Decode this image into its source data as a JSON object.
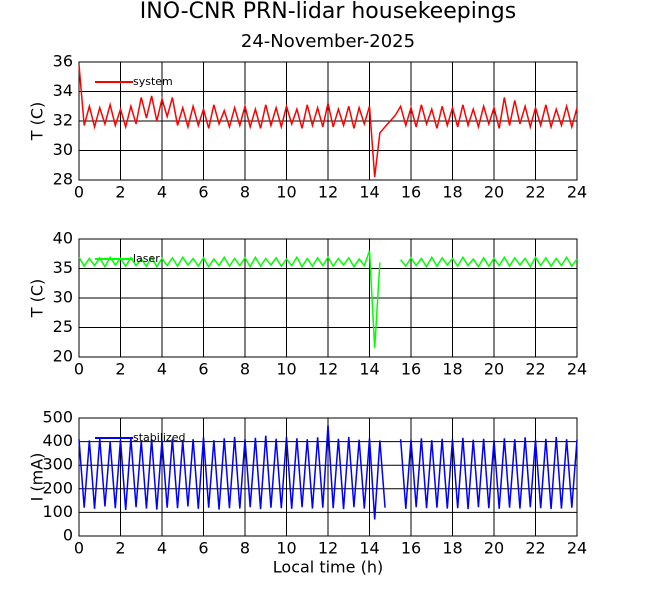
{
  "title": "INO-CNR PRN-lidar housekeepings",
  "subtitle": "24-November-2025",
  "chart_data": [
    {
      "type": "line",
      "ylabel": "T (C)",
      "xlim": [
        0,
        24
      ],
      "ylim": [
        28,
        36
      ],
      "xticks": [
        0,
        2,
        4,
        6,
        8,
        10,
        12,
        14,
        16,
        18,
        20,
        22,
        24
      ],
      "yticks": [
        28,
        30,
        32,
        34,
        36
      ],
      "grid": true,
      "legend": "upper left",
      "x": [
        0,
        0.25,
        0.5,
        0.75,
        1,
        1.25,
        1.5,
        1.75,
        2,
        2.25,
        2.5,
        2.75,
        3,
        3.25,
        3.5,
        3.75,
        4,
        4.25,
        4.5,
        4.75,
        5,
        5.25,
        5.5,
        5.75,
        6,
        6.25,
        6.5,
        6.75,
        7,
        7.25,
        7.5,
        7.75,
        8,
        8.25,
        8.5,
        8.75,
        9,
        9.25,
        9.5,
        9.75,
        10,
        10.25,
        10.5,
        10.75,
        11,
        11.25,
        11.5,
        11.75,
        12,
        12.25,
        12.5,
        12.75,
        13,
        13.25,
        13.5,
        13.75,
        14,
        14.25,
        14.5,
        14.75,
        15,
        15.25,
        15.5,
        15.75,
        16,
        16.25,
        16.5,
        16.75,
        17,
        17.25,
        17.5,
        17.75,
        18,
        18.25,
        18.5,
        18.75,
        19,
        19.25,
        19.5,
        19.75,
        20,
        20.25,
        20.5,
        20.75,
        21,
        21.25,
        21.5,
        21.75,
        22,
        22.25,
        22.5,
        22.75,
        23,
        23.25,
        23.5,
        23.75,
        24
      ],
      "series": [
        {
          "name": "system",
          "color": "#ff0000",
          "values": [
            35.8,
            31.7,
            33.0,
            31.6,
            32.9,
            31.8,
            33.1,
            31.7,
            32.8,
            31.6,
            33.0,
            31.8,
            33.6,
            32.2,
            33.7,
            32.0,
            33.5,
            32.3,
            33.6,
            31.7,
            32.9,
            31.6,
            33.0,
            31.7,
            32.8,
            31.5,
            33.1,
            31.8,
            32.7,
            31.6,
            32.9,
            31.7,
            33.0,
            31.6,
            32.8,
            31.5,
            33.1,
            31.7,
            32.9,
            31.6,
            33.0,
            31.8,
            32.8,
            31.5,
            33.1,
            31.7,
            32.9,
            31.6,
            33.2,
            31.6,
            32.8,
            31.7,
            33.0,
            31.5,
            32.9,
            31.8,
            33.0,
            28.2,
            31.2,
            31.6,
            32.0,
            32.4,
            33.0,
            31.7,
            32.9,
            31.6,
            33.1,
            31.8,
            32.8,
            31.5,
            33.0,
            31.7,
            32.9,
            31.6,
            33.1,
            31.7,
            32.8,
            31.6,
            33.0,
            31.8,
            32.9,
            31.5,
            33.6,
            31.7,
            33.4,
            31.8,
            33.0,
            31.6,
            32.9,
            31.7,
            33.1,
            31.6,
            32.8,
            31.7,
            33.0,
            31.6,
            32.9
          ]
        }
      ]
    },
    {
      "type": "line",
      "ylabel": "T (C)",
      "xlim": [
        0,
        24
      ],
      "ylim": [
        20,
        40
      ],
      "xticks": [
        0,
        2,
        4,
        6,
        8,
        10,
        12,
        14,
        16,
        18,
        20,
        22,
        24
      ],
      "yticks": [
        20,
        25,
        30,
        35,
        40
      ],
      "grid": true,
      "legend": "upper left",
      "x": [
        0,
        0.25,
        0.5,
        0.75,
        1,
        1.25,
        1.5,
        1.75,
        2,
        2.25,
        2.5,
        2.75,
        3,
        3.25,
        3.5,
        3.75,
        4,
        4.25,
        4.5,
        4.75,
        5,
        5.25,
        5.5,
        5.75,
        6,
        6.25,
        6.5,
        6.75,
        7,
        7.25,
        7.5,
        7.75,
        8,
        8.25,
        8.5,
        8.75,
        9,
        9.25,
        9.5,
        9.75,
        10,
        10.25,
        10.5,
        10.75,
        11,
        11.25,
        11.5,
        11.75,
        12,
        12.25,
        12.5,
        12.75,
        13,
        13.25,
        13.5,
        13.75,
        14,
        14.25,
        14.5,
        14.75,
        15,
        15.25,
        15.5,
        15.75,
        16,
        16.25,
        16.5,
        16.75,
        17,
        17.25,
        17.5,
        17.75,
        18,
        18.25,
        18.5,
        18.75,
        19,
        19.25,
        19.5,
        19.75,
        20,
        20.25,
        20.5,
        20.75,
        21,
        21.25,
        21.5,
        21.75,
        22,
        22.25,
        22.5,
        22.75,
        23,
        23.25,
        23.5,
        23.75,
        24
      ],
      "series": [
        {
          "name": "laser",
          "color": "#00ff00",
          "values": [
            36.9,
            35.4,
            36.7,
            35.5,
            36.8,
            35.3,
            36.9,
            35.6,
            36.7,
            35.4,
            36.8,
            35.5,
            36.6,
            35.4,
            36.9,
            35.3,
            36.7,
            35.5,
            36.8,
            35.4,
            36.9,
            35.6,
            36.7,
            35.4,
            36.8,
            35.3,
            36.6,
            35.5,
            36.9,
            35.4,
            36.7,
            35.5,
            36.8,
            35.3,
            36.9,
            35.4,
            36.7,
            35.6,
            36.8,
            35.4,
            36.6,
            35.5,
            36.9,
            35.3,
            36.7,
            35.4,
            36.8,
            35.5,
            36.9,
            35.4,
            36.7,
            35.6,
            36.8,
            35.3,
            36.6,
            35.5,
            38.0,
            21.5,
            36.0,
            null,
            null,
            null,
            36.5,
            35.4,
            36.8,
            35.5,
            36.7,
            35.3,
            36.9,
            35.4,
            36.8,
            35.6,
            36.7,
            35.4,
            36.9,
            35.5,
            36.6,
            35.3,
            36.8,
            35.4,
            36.7,
            35.5,
            36.9,
            35.4,
            36.8,
            35.6,
            36.7,
            35.3,
            36.9,
            35.5,
            36.8,
            35.4,
            36.7,
            35.5,
            36.9,
            35.4,
            36.6
          ]
        }
      ]
    },
    {
      "type": "line",
      "ylabel": "I (mA)",
      "xlabel": "Local time (h)",
      "xlim": [
        0,
        24
      ],
      "ylim": [
        0,
        500
      ],
      "xticks": [
        0,
        2,
        4,
        6,
        8,
        10,
        12,
        14,
        16,
        18,
        20,
        22,
        24
      ],
      "yticks": [
        0,
        100,
        200,
        300,
        400,
        500
      ],
      "grid": true,
      "legend": "upper left",
      "x": [
        0,
        0.25,
        0.5,
        0.75,
        1,
        1.25,
        1.5,
        1.75,
        2,
        2.25,
        2.5,
        2.75,
        3,
        3.25,
        3.5,
        3.75,
        4,
        4.25,
        4.5,
        4.75,
        5,
        5.25,
        5.5,
        5.75,
        6,
        6.25,
        6.5,
        6.75,
        7,
        7.25,
        7.5,
        7.75,
        8,
        8.25,
        8.5,
        8.75,
        9,
        9.25,
        9.5,
        9.75,
        10,
        10.25,
        10.5,
        10.75,
        11,
        11.25,
        11.5,
        11.75,
        12,
        12.25,
        12.5,
        12.75,
        13,
        13.25,
        13.5,
        13.75,
        14,
        14.25,
        14.5,
        14.75,
        15,
        15.25,
        15.5,
        15.75,
        16,
        16.25,
        16.5,
        16.75,
        17,
        17.25,
        17.5,
        17.75,
        18,
        18.25,
        18.5,
        18.75,
        19,
        19.25,
        19.5,
        19.75,
        20,
        20.25,
        20.5,
        20.75,
        21,
        21.25,
        21.5,
        21.75,
        22,
        22.25,
        22.5,
        22.75,
        23,
        23.25,
        23.5,
        23.75,
        24
      ],
      "series": [
        {
          "name": "stabilized",
          "color": "#0000ff",
          "values": [
            410,
            120,
            405,
            115,
            412,
            125,
            400,
            118,
            408,
            110,
            415,
            122,
            403,
            116,
            410,
            112,
            406,
            120,
            412,
            118,
            404,
            125,
            410,
            115,
            418,
            120,
            406,
            112,
            414,
            118,
            420,
            116,
            410,
            122,
            416,
            114,
            425,
            120,
            412,
            118,
            420,
            115,
            414,
            122,
            410,
            116,
            418,
            120,
            470,
            118,
            412,
            114,
            420,
            122,
            408,
            116,
            414,
            70,
            405,
            120,
            null,
            null,
            410,
            115,
            408,
            122,
            414,
            118,
            406,
            120,
            412,
            116,
            410,
            118,
            416,
            114,
            408,
            122,
            412,
            118,
            406,
            115,
            414,
            120,
            410,
            116,
            418,
            122,
            408,
            118,
            412,
            114,
            420,
            116,
            410,
            120,
            408
          ]
        }
      ]
    }
  ]
}
